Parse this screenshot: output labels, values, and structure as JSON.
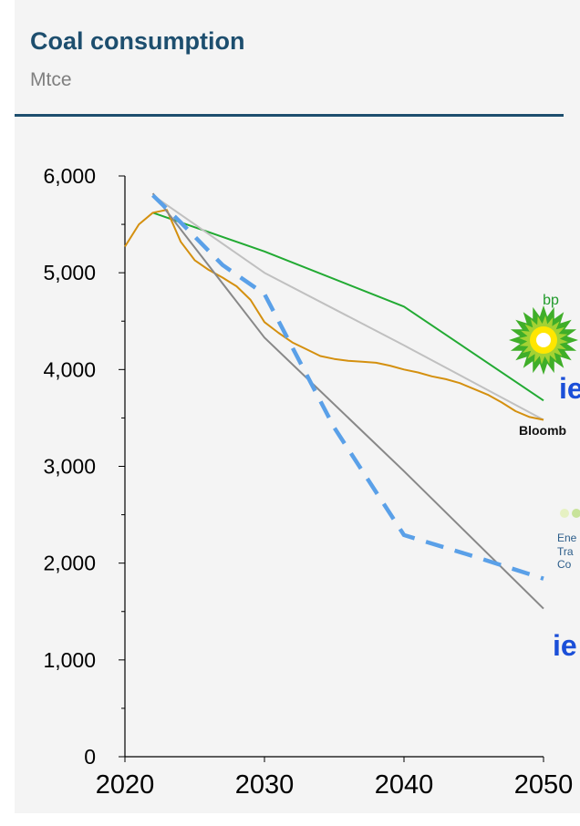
{
  "header": {
    "title": "Coal consumption",
    "unit": "Mtce"
  },
  "colors": {
    "title": "#1d4e6e",
    "rule": "#1d4e6e",
    "background": "#f4f4f4"
  },
  "logos": [
    {
      "name": "bp",
      "text": "bp"
    },
    {
      "name": "iea-1",
      "text": "ie"
    },
    {
      "name": "bloomberg",
      "text": "Bloomb"
    },
    {
      "name": "energy-transitions-commission",
      "lines": [
        "Ene",
        "Tra",
        "Co"
      ]
    },
    {
      "name": "iea-2",
      "text": "ie"
    }
  ],
  "chart_data": {
    "type": "line",
    "title": "Coal consumption",
    "ylabel": "Mtce",
    "xlim": [
      2020,
      2050
    ],
    "ylim": [
      0,
      6000
    ],
    "xticks": [
      {
        "value": 2020,
        "label": "2020"
      },
      {
        "value": 2030,
        "label": "2030"
      },
      {
        "value": 2040,
        "label": "2040"
      },
      {
        "value": 2050,
        "label": "2050"
      }
    ],
    "yticks": [
      {
        "value": 0,
        "label": "0"
      },
      {
        "value": 1000,
        "label": "1,000"
      },
      {
        "value": 2000,
        "label": "2,000"
      },
      {
        "value": 3000,
        "label": "3,000"
      },
      {
        "value": 4000,
        "label": "4,000"
      },
      {
        "value": 5000,
        "label": "5,000"
      },
      {
        "value": 6000,
        "label": "6,000"
      }
    ],
    "minor_yticks": [
      500,
      1500,
      2500,
      3500,
      4500,
      5500
    ],
    "grid": false,
    "series": [
      {
        "color": "#22aa33",
        "width": 2,
        "dash": "",
        "points": [
          [
            2022,
            5620
          ],
          [
            2030,
            5220
          ],
          [
            2040,
            4650
          ],
          [
            2050,
            3680
          ]
        ]
      },
      {
        "color": "#c0c0c0",
        "width": 2,
        "dash": "",
        "points": [
          [
            2022,
            5800
          ],
          [
            2030,
            5000
          ],
          [
            2040,
            4250
          ],
          [
            2050,
            3480
          ]
        ]
      },
      {
        "color": "#d4900f",
        "width": 2,
        "dash": "",
        "points": [
          [
            2020,
            5270
          ],
          [
            2021,
            5500
          ],
          [
            2022,
            5620
          ],
          [
            2023,
            5650
          ],
          [
            2024,
            5320
          ],
          [
            2025,
            5130
          ],
          [
            2026,
            5030
          ],
          [
            2027,
            4950
          ],
          [
            2028,
            4860
          ],
          [
            2029,
            4720
          ],
          [
            2030,
            4490
          ],
          [
            2031,
            4380
          ],
          [
            2032,
            4280
          ],
          [
            2033,
            4210
          ],
          [
            2034,
            4140
          ],
          [
            2035,
            4110
          ],
          [
            2036,
            4090
          ],
          [
            2037,
            4080
          ],
          [
            2038,
            4070
          ],
          [
            2039,
            4040
          ],
          [
            2040,
            4000
          ],
          [
            2041,
            3970
          ],
          [
            2042,
            3930
          ],
          [
            2043,
            3900
          ],
          [
            2044,
            3860
          ],
          [
            2045,
            3800
          ],
          [
            2046,
            3740
          ],
          [
            2047,
            3660
          ],
          [
            2048,
            3570
          ],
          [
            2049,
            3510
          ],
          [
            2050,
            3480
          ]
        ]
      },
      {
        "color": "#888888",
        "width": 2,
        "dash": "",
        "points": [
          [
            2022,
            5820
          ],
          [
            2030,
            4330
          ],
          [
            2040,
            2950
          ],
          [
            2050,
            1530
          ]
        ]
      },
      {
        "color": "#5aa0e8",
        "width": 4.5,
        "dash": "20,13",
        "points": [
          [
            2022,
            5800
          ],
          [
            2024,
            5520
          ],
          [
            2027,
            5080
          ],
          [
            2030,
            4780
          ],
          [
            2035,
            3400
          ],
          [
            2040,
            2290
          ],
          [
            2045,
            2070
          ],
          [
            2050,
            1840
          ]
        ]
      }
    ]
  }
}
